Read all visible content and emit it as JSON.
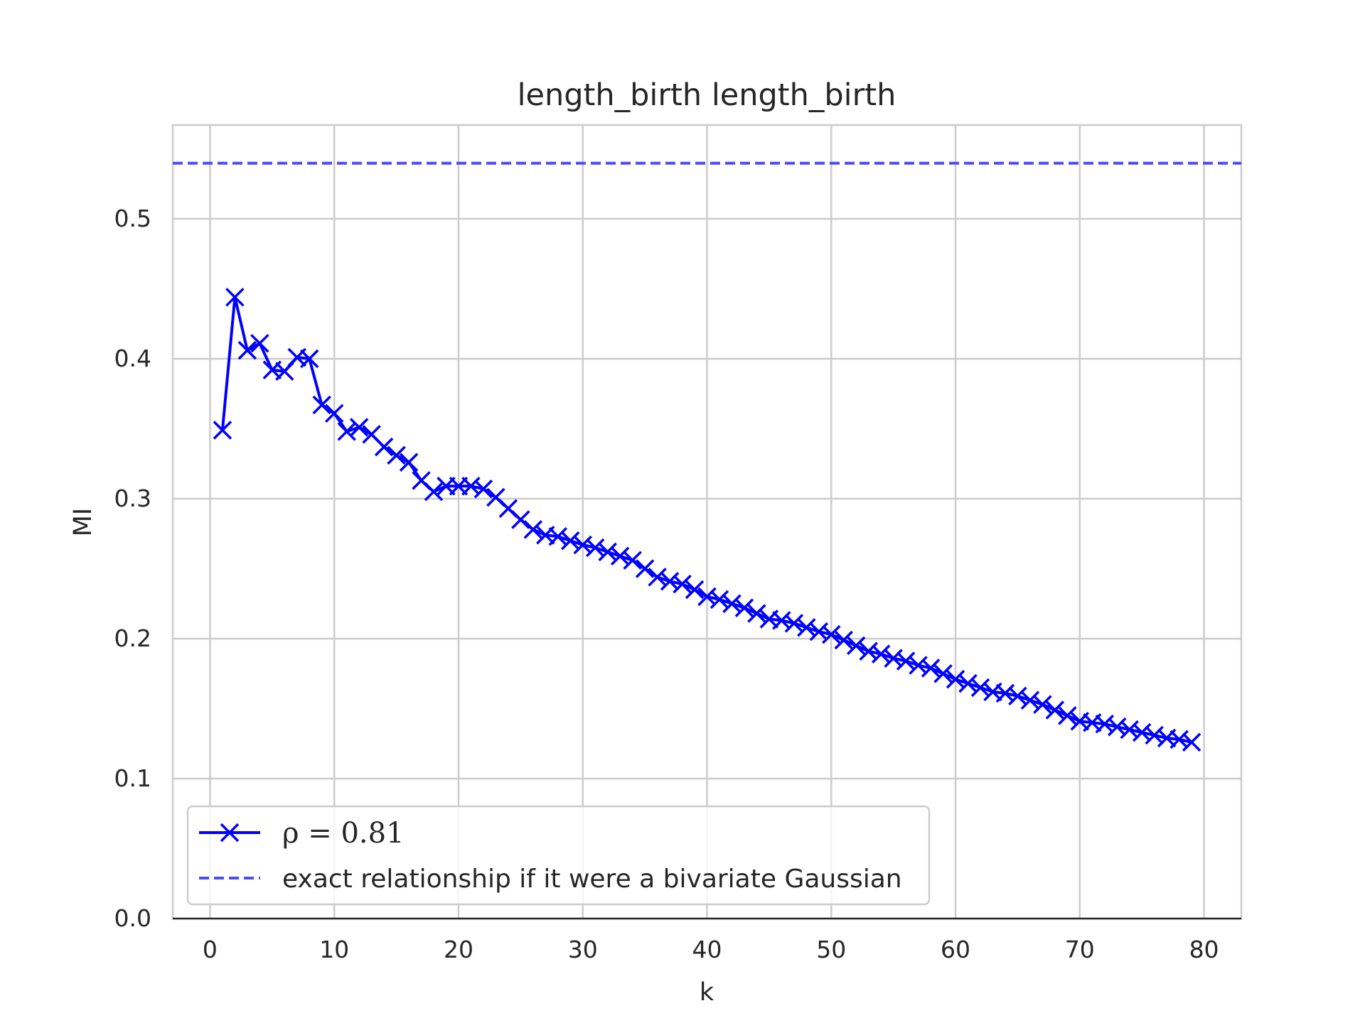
{
  "chart_data": {
    "type": "line",
    "title": "length_birth length_birth",
    "xlabel": "k",
    "ylabel": "MI",
    "xlim": [
      -3,
      83
    ],
    "ylim": [
      0,
      0.567
    ],
    "xticks": [
      0,
      10,
      20,
      30,
      40,
      50,
      60,
      70,
      80
    ],
    "xtick_labels": [
      "0",
      "10",
      "20",
      "30",
      "40",
      "50",
      "60",
      "70",
      "80"
    ],
    "yticks": [
      0.0,
      0.1,
      0.2,
      0.3,
      0.4,
      0.5
    ],
    "ytick_labels": [
      "0.0",
      "0.1",
      "0.2",
      "0.3",
      "0.4",
      "0.5"
    ],
    "grid": true,
    "legend_position": "lower-left",
    "series": [
      {
        "name": "ρ = 0.81",
        "legend_label": "ρ = 0.81",
        "color": "#0000ff",
        "style": "solid",
        "marker": "x",
        "x": [
          1,
          2,
          3,
          4,
          5,
          6,
          7,
          8,
          9,
          10,
          11,
          12,
          13,
          14,
          15,
          16,
          17,
          18,
          19,
          20,
          21,
          22,
          23,
          24,
          25,
          26,
          27,
          28,
          29,
          30,
          31,
          32,
          33,
          34,
          35,
          36,
          37,
          38,
          39,
          40,
          41,
          42,
          43,
          44,
          45,
          46,
          47,
          48,
          49,
          50,
          51,
          52,
          53,
          54,
          55,
          56,
          57,
          58,
          59,
          60,
          61,
          62,
          63,
          64,
          65,
          66,
          67,
          68,
          69,
          70,
          71,
          72,
          73,
          74,
          75,
          76,
          77,
          78,
          79
        ],
        "values": [
          0.349,
          0.444,
          0.406,
          0.411,
          0.392,
          0.391,
          0.401,
          0.4,
          0.367,
          0.361,
          0.348,
          0.351,
          0.346,
          0.337,
          0.331,
          0.326,
          0.313,
          0.305,
          0.309,
          0.309,
          0.309,
          0.307,
          0.301,
          0.293,
          0.285,
          0.278,
          0.274,
          0.273,
          0.27,
          0.267,
          0.265,
          0.262,
          0.259,
          0.256,
          0.25,
          0.244,
          0.241,
          0.239,
          0.235,
          0.23,
          0.228,
          0.225,
          0.222,
          0.218,
          0.214,
          0.213,
          0.211,
          0.208,
          0.205,
          0.203,
          0.199,
          0.195,
          0.191,
          0.189,
          0.186,
          0.184,
          0.181,
          0.179,
          0.175,
          0.171,
          0.168,
          0.165,
          0.162,
          0.161,
          0.159,
          0.156,
          0.153,
          0.149,
          0.145,
          0.141,
          0.14,
          0.139,
          0.137,
          0.135,
          0.133,
          0.131,
          0.129,
          0.128,
          0.126
        ]
      },
      {
        "name": "exact relationship if it were a bivariate Gaussian",
        "legend_label": "exact relationship if it were a bivariate Gaussian",
        "color": "#4c4cff",
        "style": "dashed",
        "value": 0.5397
      }
    ]
  }
}
